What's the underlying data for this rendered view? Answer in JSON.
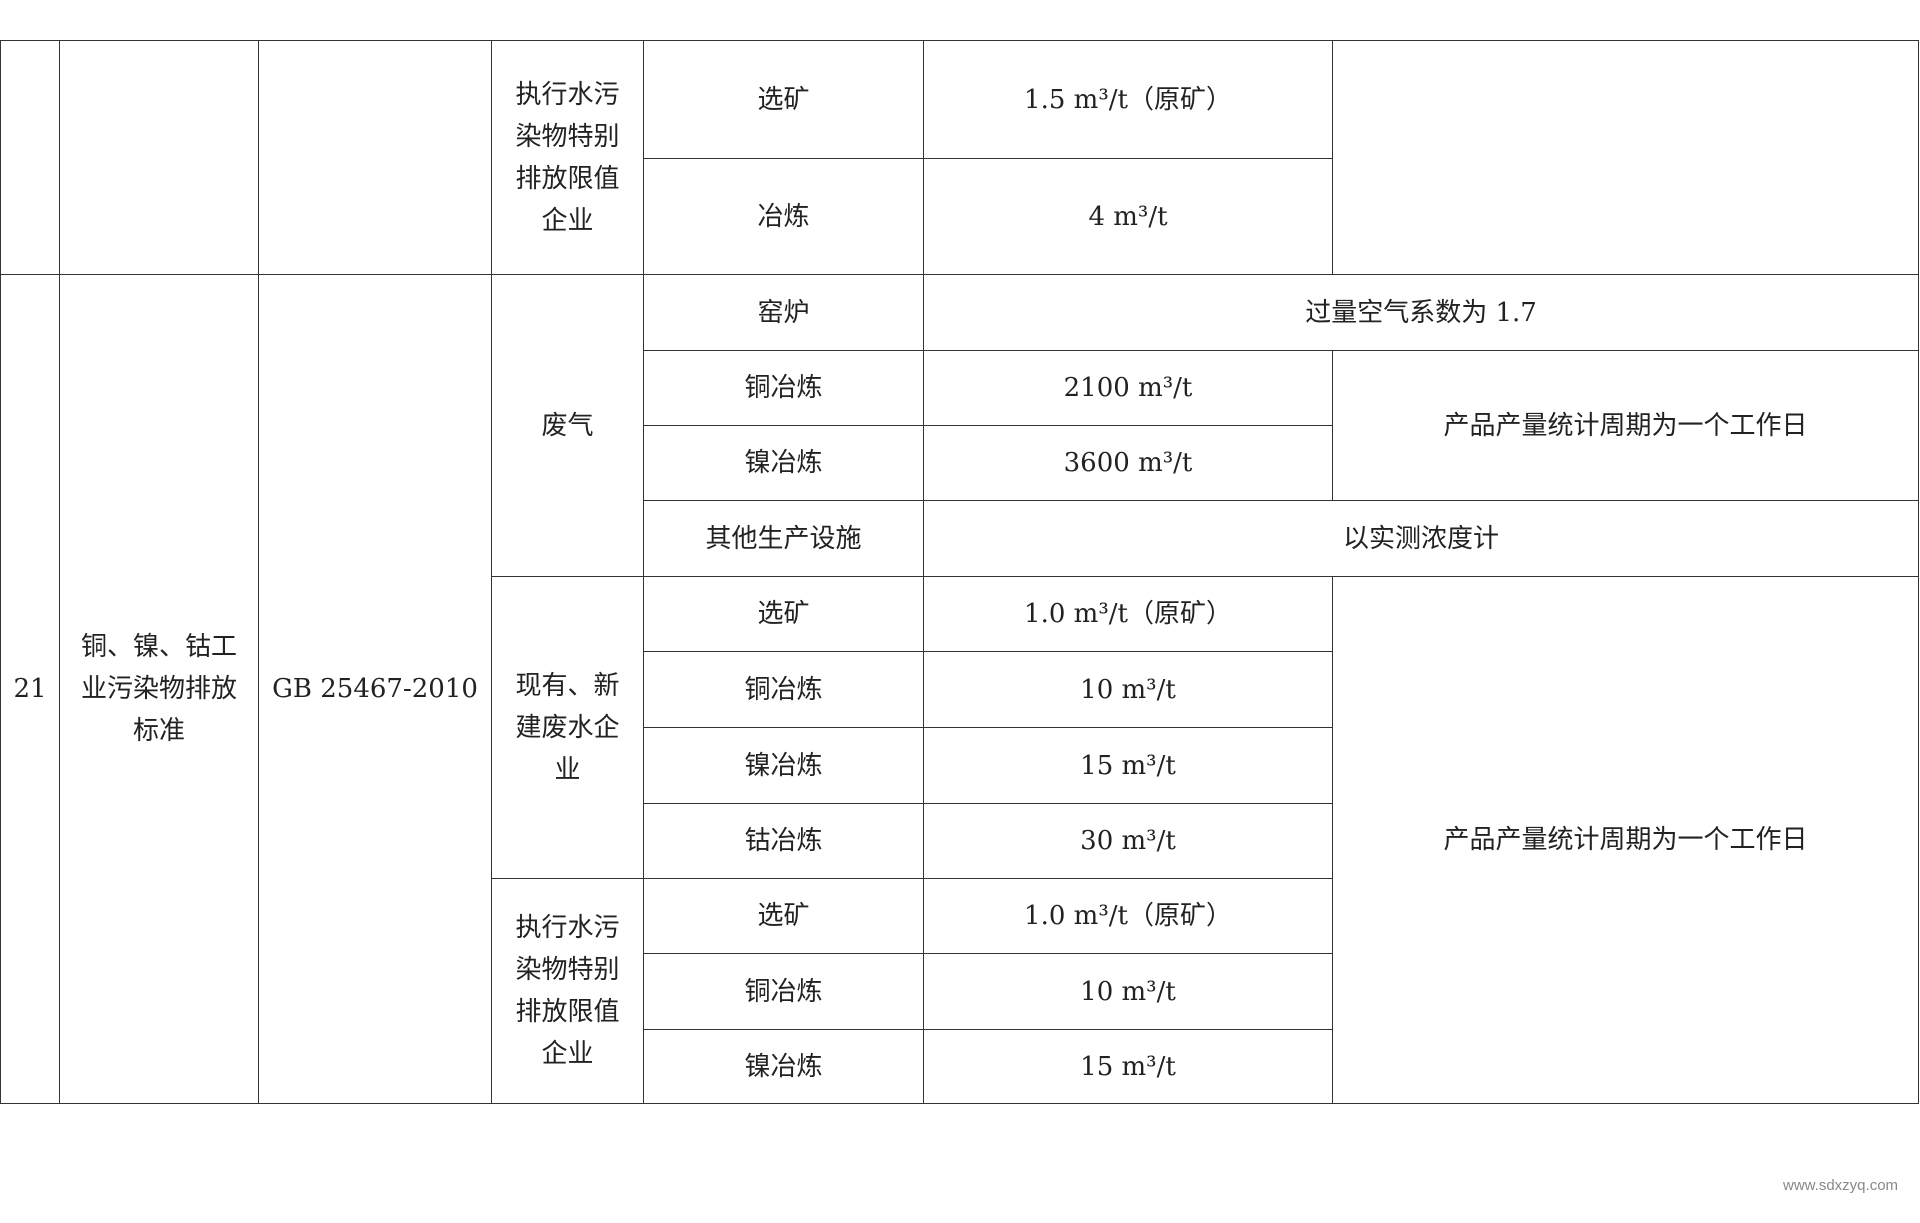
{
  "block_prev": {
    "category": "执行水污染物特别排放限值企业",
    "rows": [
      {
        "process": "选矿",
        "value": "1.5 m³/t（原矿）"
      },
      {
        "process": "冶炼",
        "value": "4 m³/t"
      }
    ]
  },
  "block21": {
    "no": "21",
    "standard_name": "铜、镍、钴工业污染物排放标准",
    "standard_code": "GB 25467-2010",
    "gas": {
      "category": "废气",
      "rows": [
        {
          "process": "窑炉",
          "value": "过量空气系数为 1.7"
        },
        {
          "process": "铜冶炼",
          "value": "2100 m³/t"
        },
        {
          "process": "镍冶炼",
          "value": "3600 m³/t"
        },
        {
          "process": "其他生产设施",
          "value": "以实测浓度计"
        }
      ],
      "note": "产品产量统计周期为一个工作日"
    },
    "water_existing": {
      "category": "现有、新建废水企业",
      "rows": [
        {
          "process": "选矿",
          "value": "1.0 m³/t（原矿）"
        },
        {
          "process": "铜冶炼",
          "value": "10 m³/t"
        },
        {
          "process": "镍冶炼",
          "value": "15 m³/t"
        },
        {
          "process": "钴冶炼",
          "value": "30 m³/t"
        }
      ]
    },
    "water_special": {
      "category": "执行水污染物特别排放限值企业",
      "rows": [
        {
          "process": "选矿",
          "value": "1.0 m³/t（原矿）"
        },
        {
          "process": "铜冶炼",
          "value": "10 m³/t"
        },
        {
          "process": "镍冶炼",
          "value": "15 m³/t"
        }
      ]
    },
    "water_note": "产品产量统计周期为一个工作日"
  },
  "watermark": "www.sdxzyq.com"
}
